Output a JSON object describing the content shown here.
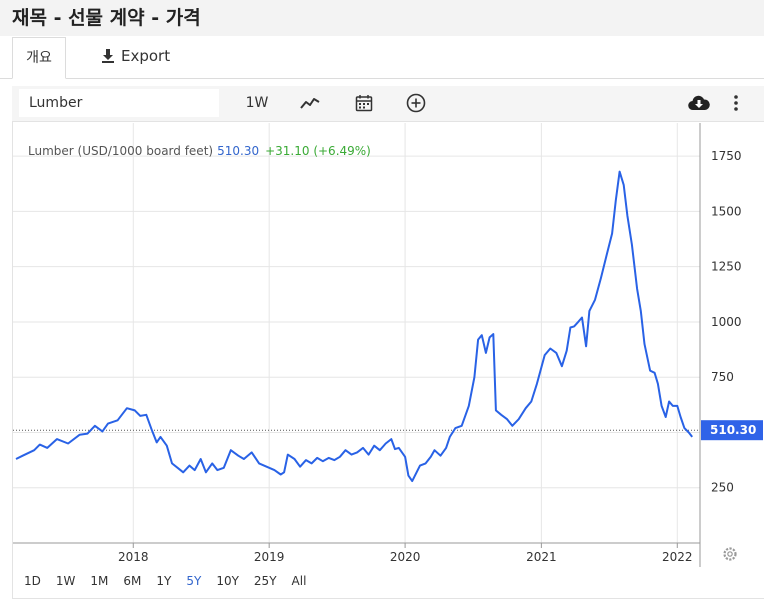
{
  "page": {
    "title": "재목 - 선물 계약 - 가격"
  },
  "tabs": {
    "overview": "개요",
    "export": "Export"
  },
  "toolbar": {
    "symbol": "Lumber",
    "interval": "1W"
  },
  "header": {
    "name": "Lumber (USD/1000 board feet)",
    "price": "510.30",
    "change": "+31.10 (+6.49%)"
  },
  "range_buttons": [
    "1D",
    "1W",
    "1M",
    "6M",
    "1Y",
    "5Y",
    "10Y",
    "25Y",
    "All"
  ],
  "active_range": "5Y",
  "colors": {
    "line": "#2962e6",
    "positive": "#3aaa35",
    "price_label": "#2f63e8",
    "grid": "#e6e6e6"
  },
  "icons": [
    "download-icon",
    "line-chart-icon",
    "calendar-icon",
    "add-circle-icon",
    "cloud-download-icon",
    "more-vertical-icon",
    "settings-icon"
  ],
  "chart_data": {
    "type": "line",
    "title": "",
    "xlabel": "",
    "ylabel": "",
    "x_ticks": [
      "2018",
      "2019",
      "2020",
      "2021",
      "2022"
    ],
    "y_ticks": [
      250,
      500,
      750,
      1000,
      1250,
      1500,
      1750
    ],
    "ylim": [
      0,
      1900
    ],
    "last_value_label": "510.30",
    "reference_line": 510.3,
    "grid": true,
    "series": [
      {
        "values": [
          [
            "2017-02-20",
            380
          ],
          [
            "2017-03-10",
            395
          ],
          [
            "2017-04-10",
            420
          ],
          [
            "2017-04-25",
            445
          ],
          [
            "2017-05-15",
            430
          ],
          [
            "2017-06-10",
            470
          ],
          [
            "2017-07-10",
            450
          ],
          [
            "2017-08-10",
            490
          ],
          [
            "2017-08-31",
            495
          ],
          [
            "2017-09-20",
            530
          ],
          [
            "2017-10-10",
            505
          ],
          [
            "2017-10-25",
            540
          ],
          [
            "2017-11-20",
            555
          ],
          [
            "2017-12-15",
            610
          ],
          [
            "2018-01-05",
            600
          ],
          [
            "2018-01-20",
            575
          ],
          [
            "2018-02-05",
            580
          ],
          [
            "2018-02-20",
            510
          ],
          [
            "2018-03-05",
            455
          ],
          [
            "2018-03-15",
            480
          ],
          [
            "2018-04-01",
            440
          ],
          [
            "2018-04-15",
            360
          ],
          [
            "2018-04-30",
            340
          ],
          [
            "2018-05-15",
            320
          ],
          [
            "2018-06-01",
            350
          ],
          [
            "2018-06-15",
            330
          ],
          [
            "2018-07-01",
            380
          ],
          [
            "2018-07-15",
            320
          ],
          [
            "2018-08-01",
            360
          ],
          [
            "2018-08-15",
            330
          ],
          [
            "2018-09-01",
            340
          ],
          [
            "2018-09-20",
            420
          ],
          [
            "2018-10-10",
            395
          ],
          [
            "2018-10-25",
            380
          ],
          [
            "2018-11-15",
            410
          ],
          [
            "2018-12-05",
            360
          ],
          [
            "2018-12-25",
            345
          ],
          [
            "2019-01-15",
            330
          ],
          [
            "2019-02-01",
            310
          ],
          [
            "2019-02-10",
            320
          ],
          [
            "2019-02-20",
            400
          ],
          [
            "2019-03-10",
            380
          ],
          [
            "2019-03-25",
            345
          ],
          [
            "2019-04-10",
            375
          ],
          [
            "2019-04-25",
            360
          ],
          [
            "2019-05-10",
            385
          ],
          [
            "2019-05-25",
            370
          ],
          [
            "2019-06-10",
            385
          ],
          [
            "2019-06-25",
            375
          ],
          [
            "2019-07-10",
            390
          ],
          [
            "2019-07-25",
            420
          ],
          [
            "2019-08-10",
            400
          ],
          [
            "2019-08-25",
            410
          ],
          [
            "2019-09-10",
            430
          ],
          [
            "2019-09-25",
            400
          ],
          [
            "2019-10-10",
            440
          ],
          [
            "2019-10-25",
            420
          ],
          [
            "2019-11-10",
            450
          ],
          [
            "2019-11-25",
            470
          ],
          [
            "2019-12-05",
            425
          ],
          [
            "2019-12-15",
            430
          ],
          [
            "2020-01-01",
            390
          ],
          [
            "2020-01-10",
            305
          ],
          [
            "2020-01-20",
            280
          ],
          [
            "2020-02-01",
            320
          ],
          [
            "2020-02-10",
            350
          ],
          [
            "2020-02-25",
            360
          ],
          [
            "2020-03-10",
            390
          ],
          [
            "2020-03-20",
            420
          ],
          [
            "2020-04-05",
            395
          ],
          [
            "2020-04-20",
            430
          ],
          [
            "2020-04-30",
            480
          ],
          [
            "2020-05-15",
            520
          ],
          [
            "2020-06-01",
            530
          ],
          [
            "2020-06-20",
            620
          ],
          [
            "2020-07-05",
            750
          ],
          [
            "2020-07-15",
            920
          ],
          [
            "2020-07-25",
            940
          ],
          [
            "2020-08-05",
            860
          ],
          [
            "2020-08-15",
            930
          ],
          [
            "2020-08-25",
            945
          ],
          [
            "2020-09-01",
            600
          ],
          [
            "2020-09-15",
            580
          ],
          [
            "2020-10-01",
            560
          ],
          [
            "2020-10-15",
            530
          ],
          [
            "2020-11-01",
            560
          ],
          [
            "2020-11-20",
            610
          ],
          [
            "2020-12-05",
            640
          ],
          [
            "2020-12-20",
            720
          ],
          [
            "2021-01-10",
            850
          ],
          [
            "2021-01-25",
            880
          ],
          [
            "2021-02-10",
            860
          ],
          [
            "2021-02-25",
            800
          ],
          [
            "2021-03-10",
            870
          ],
          [
            "2021-03-20",
            975
          ],
          [
            "2021-03-30",
            980
          ],
          [
            "2021-04-10",
            1000
          ],
          [
            "2021-04-20",
            1020
          ],
          [
            "2021-05-01",
            890
          ],
          [
            "2021-05-10",
            1050
          ],
          [
            "2021-05-25",
            1100
          ],
          [
            "2021-06-10",
            1200
          ],
          [
            "2021-06-25",
            1300
          ],
          [
            "2021-07-10",
            1400
          ],
          [
            "2021-07-20",
            1550
          ],
          [
            "2021-07-30",
            1680
          ],
          [
            "2021-08-10",
            1620
          ],
          [
            "2021-08-20",
            1480
          ],
          [
            "2021-09-01",
            1350
          ],
          [
            "2021-09-15",
            1150
          ],
          [
            "2021-09-25",
            1050
          ],
          [
            "2021-10-05",
            900
          ],
          [
            "2021-10-20",
            780
          ],
          [
            "2021-11-01",
            770
          ],
          [
            "2021-11-10",
            720
          ],
          [
            "2021-11-20",
            620
          ],
          [
            "2021-12-01",
            570
          ],
          [
            "2021-12-10",
            640
          ],
          [
            "2021-12-20",
            620
          ],
          [
            "2022-01-01",
            620
          ],
          [
            "2022-01-10",
            570
          ],
          [
            "2022-01-20",
            520
          ],
          [
            "2022-02-01",
            500
          ],
          [
            "2022-02-10",
            480
          ]
        ]
      }
    ]
  }
}
